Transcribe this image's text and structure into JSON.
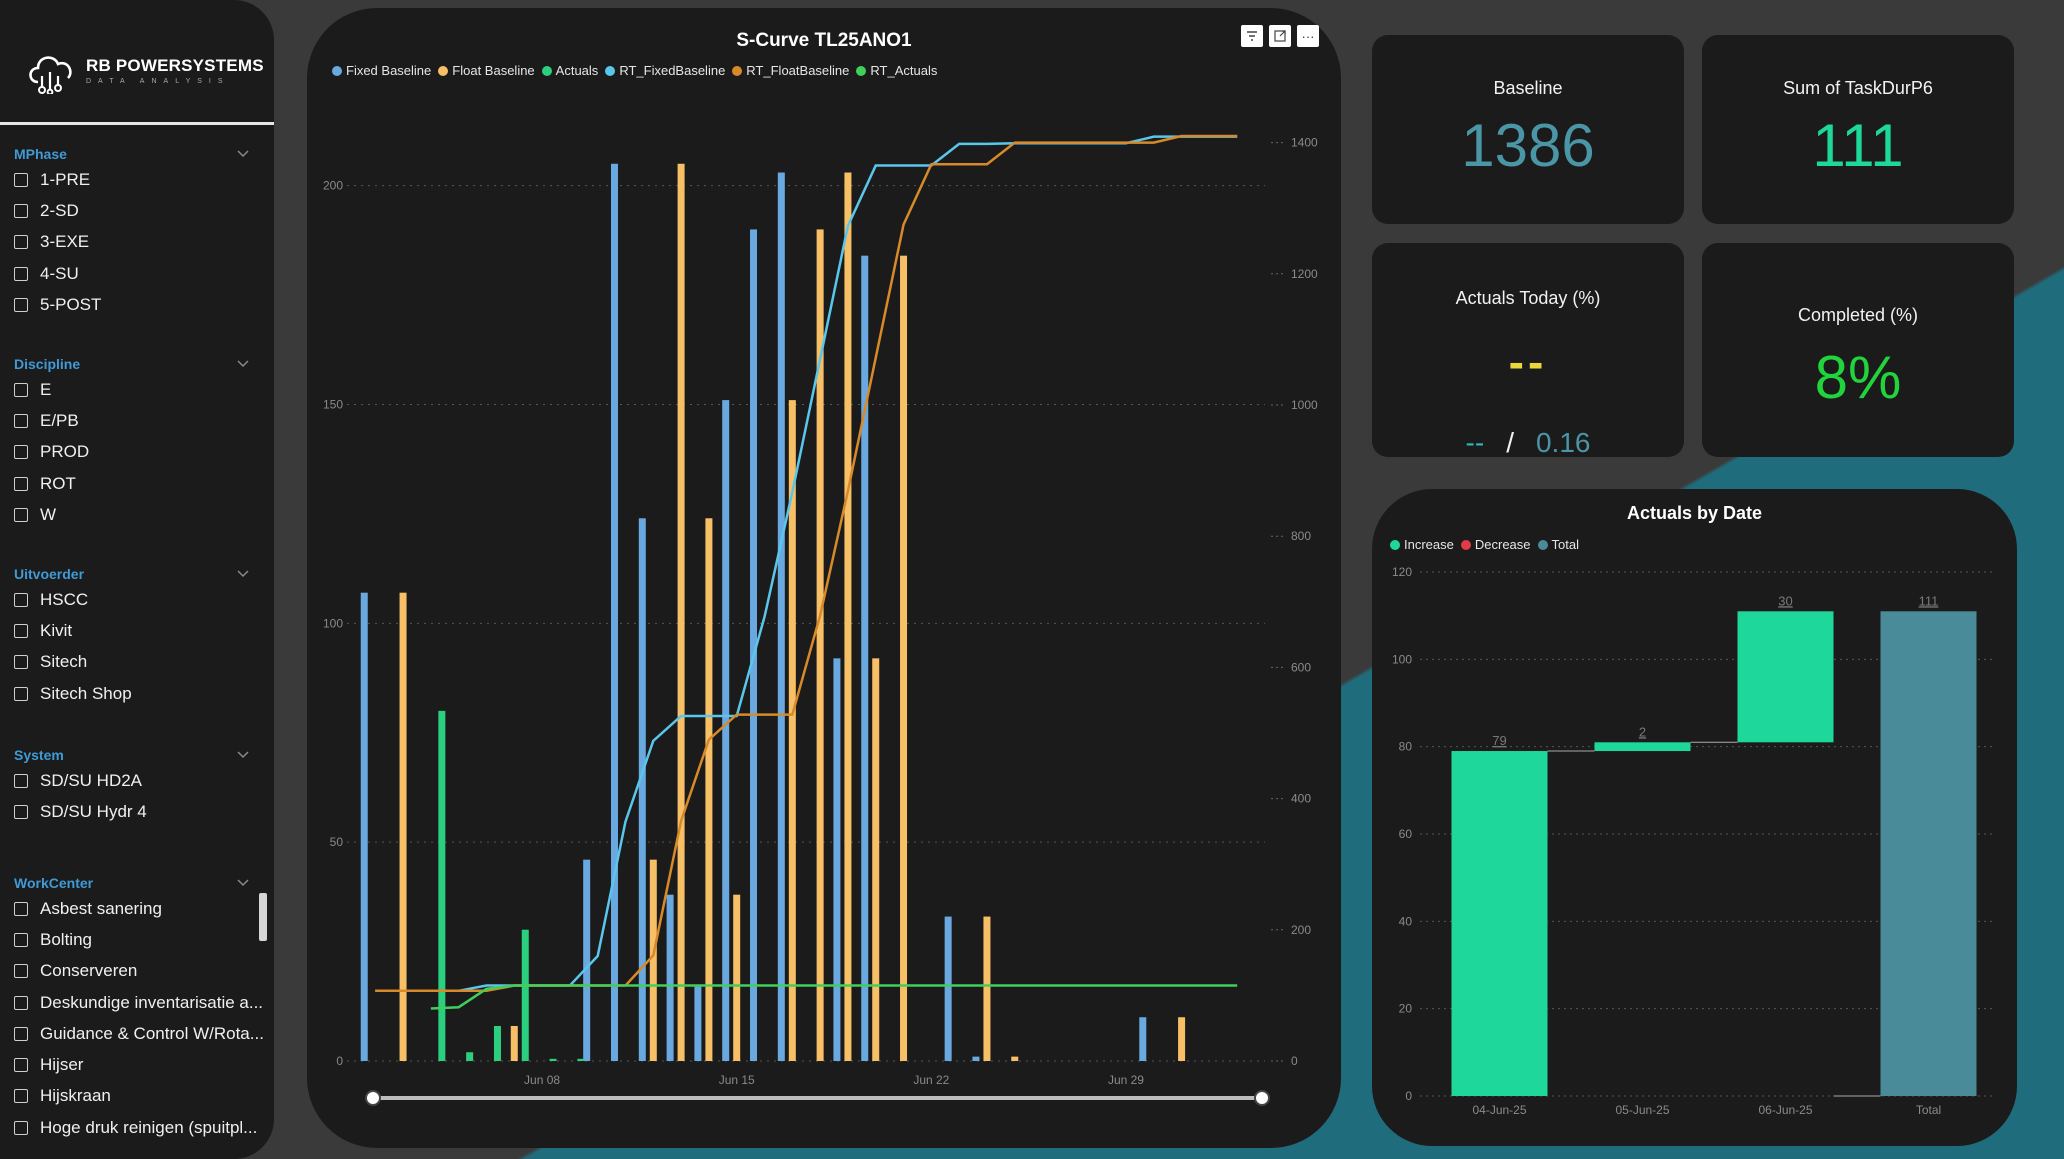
{
  "sidebar": {
    "logo": {
      "name": "RB POWERSYSTEMS",
      "tagline": "DATA ANALYSIS"
    },
    "groups": [
      {
        "title": "MPhase",
        "items": [
          "1-PRE",
          "2-SD",
          "3-EXE",
          "4-SU",
          "5-POST"
        ]
      },
      {
        "title": "Discipline",
        "items": [
          "E",
          "E/PB",
          "PROD",
          "ROT",
          "W"
        ]
      },
      {
        "title": "Uitvoerder",
        "items": [
          "HSCC",
          "Kivit",
          "Sitech",
          "Sitech Shop"
        ]
      },
      {
        "title": "System",
        "items": [
          "SD/SU HD2A",
          "SD/SU Hydr 4"
        ]
      },
      {
        "title": "WorkCenter",
        "items": [
          "Asbest sanering",
          "Bolting",
          "Conserveren",
          "Deskundige inventarisatie a...",
          "Guidance & Control W/Rota...",
          "Hijser",
          "Hijskraan",
          "Hoge druk reinigen (spuitpl..."
        ]
      }
    ]
  },
  "main_chart": {
    "title": "S-Curve TL25ANO1",
    "toolbar": {
      "filter_icon": "filter-icon",
      "focus_icon": "focus-mode-icon",
      "more_label": "···"
    }
  },
  "kpis": {
    "baseline": {
      "label": "Baseline",
      "value": "1386",
      "color": "#4a95a6"
    },
    "sum_taskdur": {
      "label": "Sum of TaskDurP6",
      "value": "111",
      "color": "#1dd89a"
    },
    "actuals_today": {
      "label": "Actuals Today (%)",
      "value": "--",
      "sub_left": "--",
      "sub_sep": "/",
      "sub_right": "0.16"
    },
    "completed": {
      "label": "Completed (%)",
      "value": "8%",
      "color": "#22d43c"
    }
  },
  "waterfall": {
    "title": "Actuals by Date"
  },
  "chart_data": [
    {
      "type": "bar",
      "title": "S-Curve TL25ANO1",
      "x_ticks": [
        "Jun 08",
        "Jun 15",
        "Jun 22",
        "Jun 29"
      ],
      "y_left_ticks": [
        "0",
        "50",
        "100",
        "150",
        "200"
      ],
      "y_left_lim": [
        0,
        215
      ],
      "y_right_ticks": [
        "0",
        "200",
        "400",
        "600",
        "800",
        "1000",
        "1200",
        "1400"
      ],
      "y_right_lim": [
        0,
        1400
      ],
      "legend_position": "top-left",
      "series": [
        {
          "name": "Fixed Baseline",
          "kind": "bar",
          "axis": "left",
          "color": "#6aa9e0",
          "points": [
            [
              1,
              107
            ],
            [
              9,
              46
            ],
            [
              10,
              205
            ],
            [
              11,
              124
            ],
            [
              12,
              38
            ],
            [
              13,
              17
            ],
            [
              14,
              151
            ],
            [
              15,
              190
            ],
            [
              16,
              203
            ],
            [
              18,
              92
            ],
            [
              19,
              184
            ],
            [
              22,
              33
            ],
            [
              23,
              1
            ],
            [
              29,
              10
            ]
          ]
        },
        {
          "name": "Float Baseline",
          "kind": "bar",
          "axis": "left",
          "color": "#f7c067",
          "points": [
            [
              2,
              107
            ],
            [
              6,
              8
            ],
            [
              11,
              46
            ],
            [
              12,
              205
            ],
            [
              13,
              124
            ],
            [
              14,
              38
            ],
            [
              16,
              151
            ],
            [
              17,
              190
            ],
            [
              18,
              203
            ],
            [
              19,
              92
            ],
            [
              20,
              184
            ],
            [
              23,
              33
            ],
            [
              24,
              1
            ],
            [
              30,
              10
            ]
          ]
        },
        {
          "name": "Actuals",
          "kind": "bar",
          "axis": "left",
          "color": "#2ad07e",
          "points": [
            [
              3,
              80
            ],
            [
              4,
              2
            ],
            [
              5,
              8
            ],
            [
              6,
              30
            ],
            [
              7,
              0.5
            ],
            [
              8,
              0.5
            ]
          ]
        },
        {
          "name": "RT_FixedBaseline",
          "kind": "line",
          "axis": "right",
          "color": "#5ac6ec",
          "points": [
            [
              1,
              107
            ],
            [
              2,
              107
            ],
            [
              3,
              107
            ],
            [
              4,
              107
            ],
            [
              5,
              115
            ],
            [
              6,
              115
            ],
            [
              7,
              115
            ],
            [
              8,
              115
            ],
            [
              9,
              160
            ],
            [
              10,
              365
            ],
            [
              11,
              488
            ],
            [
              12,
              526
            ],
            [
              13,
              526
            ],
            [
              14,
              526
            ],
            [
              15,
              677
            ],
            [
              16,
              867
            ],
            [
              17,
              1070
            ],
            [
              18,
              1273
            ],
            [
              19,
              1365
            ],
            [
              20,
              1365
            ],
            [
              21,
              1365
            ],
            [
              22,
              1398
            ],
            [
              23,
              1398
            ],
            [
              24,
              1399
            ],
            [
              25,
              1399
            ],
            [
              26,
              1399
            ],
            [
              27,
              1399
            ],
            [
              28,
              1399
            ],
            [
              29,
              1409
            ],
            [
              30,
              1409
            ],
            [
              31,
              1409
            ],
            [
              32,
              1409
            ]
          ]
        },
        {
          "name": "RT_FloatBaseline",
          "kind": "line",
          "axis": "right",
          "color": "#d88a2a",
          "points": [
            [
              1,
              107
            ],
            [
              2,
              107
            ],
            [
              3,
              107
            ],
            [
              4,
              107
            ],
            [
              5,
              107
            ],
            [
              6,
              115
            ],
            [
              7,
              115
            ],
            [
              8,
              115
            ],
            [
              9,
              115
            ],
            [
              10,
              115
            ],
            [
              11,
              161
            ],
            [
              12,
              366
            ],
            [
              13,
              490
            ],
            [
              14,
              528
            ],
            [
              15,
              528
            ],
            [
              16,
              528
            ],
            [
              17,
              679
            ],
            [
              18,
              869
            ],
            [
              19,
              1072
            ],
            [
              20,
              1275
            ],
            [
              21,
              1367
            ],
            [
              22,
              1367
            ],
            [
              23,
              1367
            ],
            [
              24,
              1400
            ],
            [
              25,
              1400
            ],
            [
              26,
              1400
            ],
            [
              27,
              1400
            ],
            [
              28,
              1400
            ],
            [
              29,
              1400
            ],
            [
              30,
              1410
            ],
            [
              31,
              1410
            ],
            [
              32,
              1410
            ]
          ]
        },
        {
          "name": "RT_Actuals",
          "kind": "line",
          "axis": "right",
          "color": "#3fcf5a",
          "points": [
            [
              3,
              80
            ],
            [
              4,
              82
            ],
            [
              5,
              110
            ],
            [
              6,
              115
            ],
            [
              7,
              115
            ],
            [
              8,
              115
            ],
            [
              9,
              115
            ],
            [
              10,
              115
            ],
            [
              11,
              115
            ],
            [
              12,
              115
            ],
            [
              13,
              115
            ],
            [
              14,
              115
            ],
            [
              15,
              115
            ],
            [
              16,
              115
            ],
            [
              17,
              115
            ],
            [
              18,
              115
            ],
            [
              19,
              115
            ],
            [
              20,
              115
            ],
            [
              21,
              115
            ],
            [
              22,
              115
            ],
            [
              23,
              115
            ],
            [
              24,
              115
            ],
            [
              25,
              115
            ],
            [
              26,
              115
            ],
            [
              27,
              115
            ],
            [
              28,
              115
            ],
            [
              29,
              115
            ],
            [
              30,
              115
            ],
            [
              31,
              115
            ],
            [
              32,
              115
            ]
          ]
        }
      ]
    },
    {
      "type": "bar",
      "subtype": "waterfall",
      "title": "Actuals by Date",
      "legend": [
        {
          "name": "Increase",
          "color": "#1dd89a"
        },
        {
          "name": "Decrease",
          "color": "#e23b46"
        },
        {
          "name": "Total",
          "color": "#4a8b9a"
        }
      ],
      "categories": [
        "04-Jun-25",
        "05-Jun-25",
        "06-Jun-25",
        "Total"
      ],
      "values": [
        79,
        2,
        30,
        111
      ],
      "labels": [
        "79",
        "2",
        "30",
        "111"
      ],
      "kinds": [
        "increase",
        "increase",
        "increase",
        "total"
      ],
      "y_ticks": [
        "0",
        "20",
        "40",
        "60",
        "80",
        "100",
        "120"
      ],
      "ylim": [
        0,
        120
      ]
    }
  ]
}
